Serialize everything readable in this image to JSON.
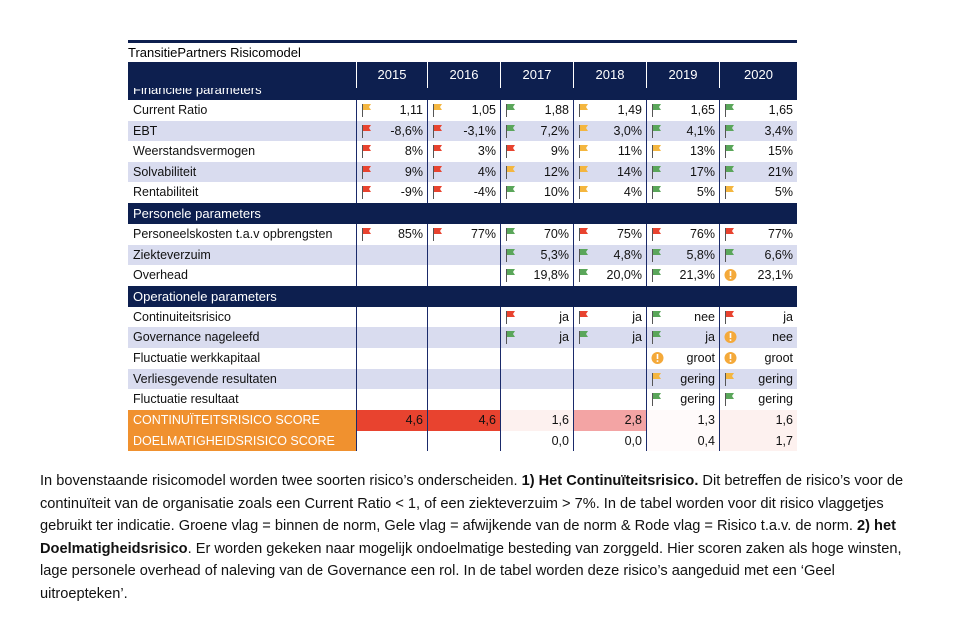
{
  "title": "TransitiePartners Risicomodel",
  "header": {
    "years": [
      "2015",
      "2016",
      "2017",
      "2018",
      "2019",
      "2020"
    ]
  },
  "sections": [
    {
      "title": "Financiële parameters",
      "rows": [
        {
          "label": "Current Ratio",
          "cells": [
            {
              "flag": "yellow",
              "value": "1,11"
            },
            {
              "flag": "yellow",
              "value": "1,05"
            },
            {
              "flag": "green",
              "value": "1,88"
            },
            {
              "flag": "yellow",
              "value": "1,49"
            },
            {
              "flag": "green",
              "value": "1,65"
            },
            {
              "flag": "green",
              "value": "1,65"
            }
          ]
        },
        {
          "label": "EBT",
          "cells": [
            {
              "flag": "red",
              "value": "-8,6%"
            },
            {
              "flag": "red",
              "value": "-3,1%"
            },
            {
              "flag": "green",
              "value": "7,2%"
            },
            {
              "flag": "yellow",
              "value": "3,0%"
            },
            {
              "flag": "green",
              "value": "4,1%"
            },
            {
              "flag": "green",
              "value": "3,4%"
            }
          ]
        },
        {
          "label": "Weerstandsvermogen",
          "cells": [
            {
              "flag": "red",
              "value": "8%"
            },
            {
              "flag": "red",
              "value": "3%"
            },
            {
              "flag": "red",
              "value": "9%"
            },
            {
              "flag": "yellow",
              "value": "11%"
            },
            {
              "flag": "yellow",
              "value": "13%"
            },
            {
              "flag": "green",
              "value": "15%"
            }
          ]
        },
        {
          "label": "Solvabiliteit",
          "cells": [
            {
              "flag": "red",
              "value": "9%"
            },
            {
              "flag": "red",
              "value": "4%"
            },
            {
              "flag": "yellow",
              "value": "12%"
            },
            {
              "flag": "yellow",
              "value": "14%"
            },
            {
              "flag": "green",
              "value": "17%"
            },
            {
              "flag": "green",
              "value": "21%"
            }
          ]
        },
        {
          "label": "Rentabiliteit",
          "cells": [
            {
              "flag": "red",
              "value": "-9%"
            },
            {
              "flag": "red",
              "value": "-4%"
            },
            {
              "flag": "green",
              "value": "10%"
            },
            {
              "flag": "yellow",
              "value": "4%"
            },
            {
              "flag": "green",
              "value": "5%"
            },
            {
              "flag": "yellow",
              "value": "5%"
            }
          ]
        }
      ]
    },
    {
      "title": "Personele parameters",
      "rows": [
        {
          "label": "Personeelskosten t.a.v opbrengsten",
          "cells": [
            {
              "flag": "red",
              "value": "85%"
            },
            {
              "flag": "red",
              "value": "77%"
            },
            {
              "flag": "green",
              "value": "70%"
            },
            {
              "flag": "red",
              "value": "75%"
            },
            {
              "flag": "red",
              "value": "76%"
            },
            {
              "flag": "red",
              "value": "77%"
            }
          ]
        },
        {
          "label": "Ziekteverzuim",
          "cells": [
            null,
            null,
            {
              "flag": "green",
              "value": "5,3%"
            },
            {
              "flag": "green",
              "value": "4,8%"
            },
            {
              "flag": "green",
              "value": "5,8%"
            },
            {
              "flag": "green",
              "value": "6,6%"
            }
          ]
        },
        {
          "label": "Overhead",
          "cells": [
            null,
            null,
            {
              "flag": "green",
              "value": "19,8%"
            },
            {
              "flag": "green",
              "value": "20,0%"
            },
            {
              "flag": "green",
              "value": "21,3%"
            },
            {
              "flag": "alert",
              "value": "23,1%"
            }
          ]
        }
      ]
    },
    {
      "title": "Operationele parameters",
      "rows": [
        {
          "label": "Continuiteitsrisico",
          "cells": [
            null,
            null,
            {
              "flag": "red",
              "value": "ja"
            },
            {
              "flag": "red",
              "value": "ja"
            },
            {
              "flag": "green",
              "value": "nee"
            },
            {
              "flag": "red",
              "value": "ja"
            }
          ]
        },
        {
          "label": "Governance nageleefd",
          "cells": [
            null,
            null,
            {
              "flag": "green",
              "value": "ja"
            },
            {
              "flag": "green",
              "value": "ja"
            },
            {
              "flag": "green",
              "value": "ja"
            },
            {
              "flag": "alert",
              "value": "nee"
            }
          ]
        },
        {
          "label": "Fluctuatie werkkapitaal",
          "cells": [
            null,
            null,
            null,
            null,
            {
              "flag": "alert",
              "value": "groot"
            },
            {
              "flag": "alert",
              "value": "groot"
            }
          ]
        },
        {
          "label": "Verliesgevende resultaten",
          "cells": [
            null,
            null,
            null,
            null,
            {
              "flag": "yellow",
              "value": "gering"
            },
            {
              "flag": "yellow",
              "value": "gering"
            }
          ]
        },
        {
          "label": "Fluctuatie resultaat",
          "cells": [
            null,
            null,
            null,
            null,
            {
              "flag": "green",
              "value": "gering"
            },
            {
              "flag": "green",
              "value": "gering"
            }
          ]
        }
      ]
    }
  ],
  "scores": [
    {
      "label": "CONTINUÏTEITSRISICO SCORE",
      "cells": [
        {
          "value": "4,6",
          "color": "#e8432f"
        },
        {
          "value": "4,6",
          "color": "#e8432f"
        },
        {
          "value": "1,6",
          "color": "#fdf1ef"
        },
        {
          "value": "2,8",
          "color": "#f3a4a4"
        },
        {
          "value": "1,3",
          "color": "#fffafa"
        },
        {
          "value": "1,6",
          "color": "#fdf1ef"
        }
      ]
    },
    {
      "label": "DOELMATIGHEIDSRISICO SCORE",
      "cells": [
        null,
        null,
        {
          "value": "0,0",
          "color": "#ffffff"
        },
        {
          "value": "0,0",
          "color": "#ffffff"
        },
        {
          "value": "0,4",
          "color": "#fffafa"
        },
        {
          "value": "1,7",
          "color": "#fdf1ef"
        }
      ]
    }
  ],
  "paragraph": [
    {
      "text": "In bovenstaande risicomodel worden twee soorten risico’s onderscheiden. ",
      "bold": false
    },
    {
      "text": "1) Het Continuïteitsrisico.",
      "bold": true
    },
    {
      "text": " Dit betreffen de risico’s voor de continuïteit van de organisatie zoals een Current Ratio < 1, of een ziekteverzuim > 7%. In de tabel worden voor dit risico vlaggetjes gebruikt ter indicatie. Groene vlag = binnen de norm, Gele vlag = afwijkende van de norm & Rode vlag = Risico t.a.v. de norm. ",
      "bold": false
    },
    {
      "text": "2) het Doelmatigheidsrisico",
      "bold": true
    },
    {
      "text": ". Er worden gekeken naar mogelijk ondoelmatige besteding van zorggeld. Hier scoren zaken als hoge winsten, lage personele overhead of naleving van de Governance een rol. In de tabel worden deze risico’s aangeduid met een ‘Geel uitroepteken’.",
      "bold": false
    }
  ]
}
